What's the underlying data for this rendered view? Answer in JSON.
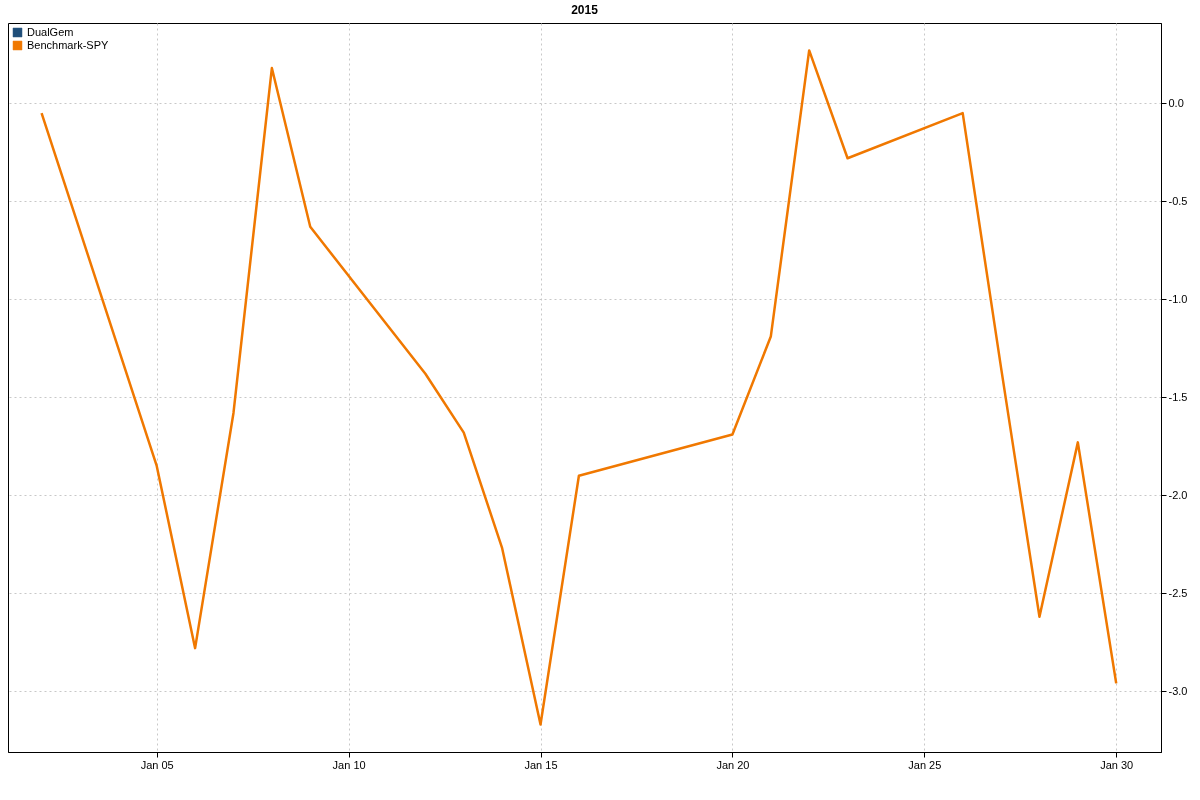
{
  "chart_data": {
    "type": "line",
    "title": "2015",
    "x": [
      "2015-01-02",
      "2015-01-05",
      "2015-01-06",
      "2015-01-07",
      "2015-01-08",
      "2015-01-09",
      "2015-01-12",
      "2015-01-13",
      "2015-01-14",
      "2015-01-15",
      "2015-01-16",
      "2015-01-20",
      "2015-01-21",
      "2015-01-22",
      "2015-01-23",
      "2015-01-26",
      "2015-01-27",
      "2015-01-28",
      "2015-01-29",
      "2015-01-30"
    ],
    "series": [
      {
        "name": "DualGem",
        "color": "#1f4e79",
        "values": [
          null,
          null,
          null,
          null,
          null,
          null,
          null,
          null,
          null,
          null,
          null,
          null,
          null,
          null,
          null,
          null,
          null,
          null,
          null,
          null
        ]
      },
      {
        "name": "Benchmark-SPY",
        "color": "#f07800",
        "values": [
          -0.05,
          -1.85,
          -2.78,
          -1.58,
          0.18,
          -0.63,
          -1.38,
          -1.68,
          -2.27,
          -3.17,
          -1.9,
          -1.69,
          -1.19,
          0.27,
          -0.28,
          -0.05,
          -1.35,
          -2.62,
          -1.73,
          -2.96
        ]
      }
    ],
    "xlim": [
      "2015-01-01T03:00",
      "2015-01-31T04:00"
    ],
    "xticks": [
      {
        "value": "2015-01-05",
        "label": "Jan 05"
      },
      {
        "value": "2015-01-10",
        "label": "Jan 10"
      },
      {
        "value": "2015-01-15",
        "label": "Jan 15"
      },
      {
        "value": "2015-01-20",
        "label": "Jan 20"
      },
      {
        "value": "2015-01-25",
        "label": "Jan 25"
      },
      {
        "value": "2015-01-30",
        "label": "Jan 30"
      }
    ],
    "ylim": [
      -3.31,
      0.41
    ],
    "yticks": [
      {
        "value": 0,
        "label": "0.0"
      },
      {
        "value": -0.5,
        "label": "-0.5"
      },
      {
        "value": -1,
        "label": "-1.0"
      },
      {
        "value": -1.5,
        "label": "-1.5"
      },
      {
        "value": -2,
        "label": "-2.0"
      },
      {
        "value": -2.5,
        "label": "-2.5"
      },
      {
        "value": -3,
        "label": "-3.0"
      }
    ],
    "grid": true,
    "legend": "top left",
    "line_style": "solid",
    "marker": "none"
  }
}
